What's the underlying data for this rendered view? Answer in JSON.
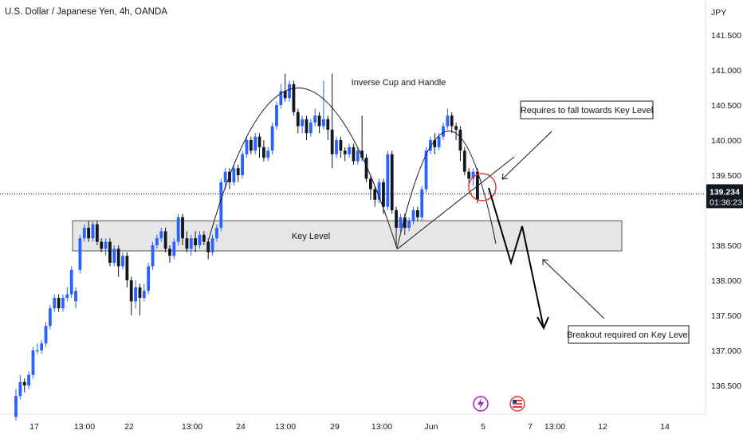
{
  "title": "U.S. Dollar / Japanese Yen, 4h, OANDA",
  "chart_data": {
    "type": "candlestick",
    "currency_label": "JPY",
    "ylim": [
      136.12,
      141.9
    ],
    "y_ticks": [
      "141.500",
      "141.000",
      "140.500",
      "140.000",
      "139.500",
      "138.500",
      "138.000",
      "137.500",
      "137.000",
      "136.500"
    ],
    "x_ticks": [
      "17",
      "13:00",
      "22",
      "13:00",
      "24",
      "13:00",
      "29",
      "13:00",
      "Jun",
      "5",
      "7",
      "13:00",
      "12",
      "14"
    ],
    "last_price": "139.234",
    "countdown": "01:36:23",
    "colors": {
      "up": "#2962ff",
      "down": "#131722",
      "price_tag": "#131722",
      "marker": "#e53935"
    },
    "candles": [
      [
        136.05,
        136.35,
        136.0,
        136.45
      ],
      [
        136.35,
        136.55,
        136.3,
        136.65
      ],
      [
        136.55,
        136.5,
        136.4,
        136.6
      ],
      [
        136.5,
        136.65,
        136.45,
        136.7
      ],
      [
        136.65,
        137.0,
        136.6,
        137.05
      ],
      [
        137.0,
        137.0,
        136.95,
        137.1
      ],
      [
        137.0,
        137.1,
        136.95,
        137.15
      ],
      [
        137.1,
        137.35,
        137.05,
        137.4
      ],
      [
        137.35,
        137.6,
        137.3,
        137.65
      ],
      [
        137.6,
        137.75,
        137.55,
        137.8
      ],
      [
        137.75,
        137.6,
        137.55,
        137.8
      ],
      [
        137.6,
        137.75,
        137.55,
        137.8
      ],
      [
        137.75,
        137.8,
        137.7,
        137.9
      ],
      [
        137.8,
        138.15,
        137.75,
        138.2
      ],
      [
        137.7,
        137.85,
        137.6,
        137.9
      ],
      [
        138.15,
        138.6,
        138.1,
        138.65
      ],
      [
        138.6,
        138.75,
        138.55,
        138.8
      ],
      [
        138.75,
        138.6,
        138.55,
        138.85
      ],
      [
        138.6,
        138.8,
        138.55,
        138.85
      ],
      [
        138.8,
        138.55,
        138.5,
        138.85
      ],
      [
        138.55,
        138.45,
        138.4,
        138.6
      ],
      [
        138.45,
        138.55,
        138.35,
        138.6
      ],
      [
        138.55,
        138.25,
        138.2,
        138.6
      ],
      [
        138.25,
        138.45,
        138.2,
        138.5
      ],
      [
        138.45,
        138.2,
        138.05,
        138.5
      ],
      [
        138.2,
        138.35,
        138.15,
        138.4
      ],
      [
        138.35,
        138.0,
        137.9,
        138.4
      ],
      [
        138.0,
        137.7,
        137.5,
        138.05
      ],
      [
        137.7,
        137.9,
        137.6,
        138.0
      ],
      [
        137.9,
        137.75,
        137.5,
        137.95
      ],
      [
        137.75,
        137.85,
        137.7,
        137.95
      ],
      [
        137.85,
        138.2,
        137.8,
        138.25
      ],
      [
        138.2,
        138.5,
        138.15,
        138.55
      ],
      [
        138.5,
        138.6,
        138.45,
        138.65
      ],
      [
        138.6,
        138.7,
        138.55,
        138.75
      ],
      [
        138.7,
        138.45,
        138.4,
        138.75
      ],
      [
        138.45,
        138.35,
        138.25,
        138.5
      ],
      [
        138.35,
        138.55,
        138.3,
        138.6
      ],
      [
        138.55,
        138.9,
        138.5,
        138.95
      ],
      [
        138.9,
        138.6,
        138.5,
        138.95
      ],
      [
        138.6,
        138.45,
        138.4,
        138.7
      ],
      [
        138.45,
        138.6,
        138.35,
        138.65
      ],
      [
        138.6,
        138.5,
        138.4,
        138.7
      ],
      [
        138.5,
        138.65,
        138.45,
        138.7
      ],
      [
        138.65,
        138.55,
        138.5,
        138.7
      ],
      [
        138.55,
        138.4,
        138.3,
        138.6
      ],
      [
        138.4,
        138.6,
        138.35,
        138.65
      ],
      [
        138.6,
        138.75,
        138.55,
        138.8
      ],
      [
        138.75,
        139.4,
        138.7,
        139.45
      ],
      [
        139.4,
        139.55,
        139.3,
        139.6
      ],
      [
        139.55,
        139.4,
        139.3,
        139.6
      ],
      [
        139.4,
        139.6,
        139.35,
        139.65
      ],
      [
        139.6,
        139.5,
        139.4,
        139.65
      ],
      [
        139.5,
        139.8,
        139.45,
        139.85
      ],
      [
        139.8,
        140.0,
        139.75,
        140.05
      ],
      [
        140.0,
        139.85,
        139.8,
        140.05
      ],
      [
        139.85,
        140.05,
        139.8,
        140.1
      ],
      [
        140.05,
        139.9,
        139.75,
        140.1
      ],
      [
        139.9,
        139.75,
        139.7,
        140.0
      ],
      [
        139.75,
        139.85,
        139.7,
        139.9
      ],
      [
        139.85,
        140.2,
        139.8,
        140.25
      ],
      [
        140.2,
        140.5,
        140.15,
        140.55
      ],
      [
        140.5,
        140.7,
        140.45,
        140.8
      ],
      [
        140.7,
        140.6,
        140.55,
        140.95
      ],
      [
        140.6,
        140.8,
        140.55,
        140.85
      ],
      [
        140.8,
        140.4,
        140.35,
        140.85
      ],
      [
        140.4,
        140.2,
        140.1,
        140.45
      ],
      [
        140.2,
        140.3,
        140.1,
        140.35
      ],
      [
        140.3,
        140.1,
        140.0,
        140.35
      ],
      [
        140.1,
        140.25,
        140.05,
        140.3
      ],
      [
        140.25,
        140.35,
        140.2,
        140.45
      ],
      [
        140.35,
        140.2,
        140.1,
        140.4
      ],
      [
        140.2,
        140.3,
        140.15,
        140.85
      ],
      [
        140.3,
        140.15,
        140.0,
        140.35
      ],
      [
        140.15,
        139.8,
        139.6,
        140.95
      ],
      [
        139.8,
        140.0,
        139.75,
        140.05
      ],
      [
        140.0,
        139.85,
        139.75,
        140.05
      ],
      [
        139.85,
        139.8,
        139.7,
        139.9
      ],
      [
        139.8,
        139.9,
        139.75,
        139.95
      ],
      [
        139.9,
        139.7,
        139.65,
        139.95
      ],
      [
        139.7,
        139.85,
        139.65,
        139.9
      ],
      [
        139.85,
        139.75,
        139.7,
        140.35
      ],
      [
        139.75,
        139.45,
        139.4,
        139.8
      ],
      [
        139.45,
        139.3,
        139.15,
        139.5
      ],
      [
        139.3,
        139.15,
        139.05,
        139.35
      ],
      [
        139.15,
        139.4,
        139.1,
        139.45
      ],
      [
        139.4,
        139.05,
        138.95,
        139.45
      ],
      [
        139.05,
        139.8,
        139.0,
        139.85
      ],
      [
        139.8,
        139.0,
        138.95,
        139.85
      ],
      [
        139.0,
        138.75,
        138.5,
        139.05
      ],
      [
        138.75,
        138.9,
        138.7,
        138.95
      ],
      [
        138.9,
        138.75,
        138.65,
        138.95
      ],
      [
        138.75,
        138.85,
        138.7,
        138.9
      ],
      [
        138.85,
        139.0,
        138.8,
        139.05
      ],
      [
        139.0,
        138.9,
        138.85,
        139.05
      ],
      [
        138.9,
        139.3,
        138.85,
        139.35
      ],
      [
        139.3,
        139.85,
        139.25,
        139.9
      ],
      [
        139.85,
        140.0,
        139.8,
        140.05
      ],
      [
        140.0,
        139.9,
        139.8,
        140.1
      ],
      [
        139.9,
        140.05,
        139.85,
        140.1
      ],
      [
        140.05,
        140.2,
        140.0,
        140.25
      ],
      [
        140.2,
        140.35,
        140.15,
        140.45
      ],
      [
        140.35,
        140.2,
        140.1,
        140.4
      ],
      [
        140.2,
        140.15,
        140.0,
        140.25
      ],
      [
        140.15,
        139.85,
        139.7,
        140.2
      ],
      [
        139.85,
        139.55,
        139.5,
        139.9
      ],
      [
        139.55,
        139.45,
        139.35,
        139.6
      ],
      [
        139.45,
        139.55,
        139.35,
        139.6
      ],
      [
        139.55,
        139.15,
        139.1,
        139.6
      ]
    ],
    "annotations": {
      "key_level_box": {
        "label": "Key Level",
        "top": 138.85,
        "bottom": 138.42
      },
      "cup_label": "Inverse Cup and Handle",
      "callout_top": "Requires to fall towards Key Level",
      "callout_bottom": "Breakout required on Key Level"
    }
  }
}
